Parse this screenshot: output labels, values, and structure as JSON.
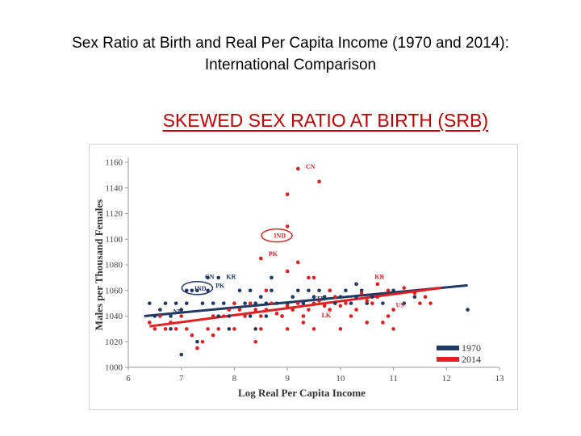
{
  "slide": {
    "title_line1": "Sex Ratio at Birth and Real Per Capita Income (1970 and 2014):",
    "title_line2": "International Comparison",
    "subtitle": "SKEWED SEX RATIO AT BIRTH (SRB)"
  },
  "colors": {
    "series_1970": "#1f3864",
    "series_2014": "#e02020"
  },
  "chart_data": {
    "type": "scatter",
    "xlabel": "Log Real Per Capita Income",
    "ylabel": "Males per Thousand Females",
    "xlim": [
      6,
      13
    ],
    "ylim": [
      1000,
      1160
    ],
    "xticks": [
      6,
      7,
      8,
      9,
      10,
      11,
      12,
      13
    ],
    "yticks": [
      1000,
      1020,
      1040,
      1060,
      1080,
      1100,
      1120,
      1140,
      1160
    ],
    "grid": false,
    "legend_position": "bottom-right",
    "series": [
      {
        "name": "1970",
        "color": "#1f3864",
        "trend": [
          [
            6.3,
            1040
          ],
          [
            12.4,
            1064
          ]
        ],
        "points": [
          [
            6.4,
            1050
          ],
          [
            6.5,
            1040
          ],
          [
            6.6,
            1045
          ],
          [
            6.7,
            1050
          ],
          [
            6.8,
            1040
          ],
          [
            6.9,
            1050
          ],
          [
            7.0,
            1045
          ],
          [
            7.1,
            1050
          ],
          [
            7.1,
            1060
          ],
          [
            7.2,
            1060
          ],
          [
            7.3,
            1060
          ],
          [
            7.4,
            1050
          ],
          [
            7.5,
            1060
          ],
          [
            7.6,
            1050
          ],
          [
            7.7,
            1070
          ],
          [
            7.8,
            1050
          ],
          [
            7.9,
            1040
          ],
          [
            8.0,
            1050
          ],
          [
            8.1,
            1060
          ],
          [
            8.2,
            1050
          ],
          [
            8.3,
            1060
          ],
          [
            8.4,
            1050
          ],
          [
            8.5,
            1055
          ],
          [
            8.6,
            1050
          ],
          [
            8.7,
            1060
          ],
          [
            8.8,
            1050
          ],
          [
            8.9,
            1040
          ],
          [
            9.0,
            1050
          ],
          [
            9.1,
            1055
          ],
          [
            9.2,
            1060
          ],
          [
            9.3,
            1050
          ],
          [
            9.4,
            1060
          ],
          [
            9.5,
            1055
          ],
          [
            9.6,
            1060
          ],
          [
            9.7,
            1055
          ],
          [
            9.8,
            1060
          ],
          [
            9.9,
            1050
          ],
          [
            10.0,
            1055
          ],
          [
            10.1,
            1060
          ],
          [
            10.2,
            1050
          ],
          [
            10.3,
            1055
          ],
          [
            10.4,
            1060
          ],
          [
            10.5,
            1050
          ],
          [
            10.6,
            1055
          ],
          [
            10.8,
            1050
          ],
          [
            11.0,
            1060
          ],
          [
            11.2,
            1050
          ],
          [
            11.4,
            1055
          ],
          [
            7.5,
            1070
          ],
          [
            7.0,
            1010
          ],
          [
            7.7,
            1040
          ],
          [
            8.6,
            1040
          ],
          [
            8.3,
            1040
          ],
          [
            12.4,
            1045
          ],
          [
            6.8,
            1030
          ],
          [
            7.3,
            1020
          ],
          [
            7.9,
            1030
          ],
          [
            8.4,
            1030
          ],
          [
            8.7,
            1070
          ],
          [
            10.3,
            1065
          ]
        ]
      },
      {
        "name": "2014",
        "color": "#e02020",
        "trend": [
          [
            6.4,
            1032
          ],
          [
            11.9,
            1062
          ]
        ],
        "points": [
          [
            9.2,
            1155
          ],
          [
            9.6,
            1145
          ],
          [
            9.0,
            1135
          ],
          [
            9.0,
            1110
          ],
          [
            8.5,
            1085
          ],
          [
            9.2,
            1082
          ],
          [
            9.0,
            1075
          ],
          [
            9.4,
            1070
          ],
          [
            9.5,
            1070
          ],
          [
            10.7,
            1065
          ],
          [
            10.9,
            1060
          ],
          [
            11.2,
            1062
          ],
          [
            11.4,
            1058
          ],
          [
            11.6,
            1055
          ],
          [
            11.7,
            1050
          ],
          [
            11.0,
            1045
          ],
          [
            10.9,
            1040
          ],
          [
            10.6,
            1050
          ],
          [
            10.5,
            1052
          ],
          [
            10.4,
            1058
          ],
          [
            10.3,
            1045
          ],
          [
            10.2,
            1040
          ],
          [
            10.1,
            1050
          ],
          [
            10.0,
            1048
          ],
          [
            9.9,
            1055
          ],
          [
            9.8,
            1045
          ],
          [
            9.7,
            1048
          ],
          [
            9.6,
            1052
          ],
          [
            9.5,
            1050
          ],
          [
            9.4,
            1045
          ],
          [
            9.3,
            1040
          ],
          [
            9.2,
            1050
          ],
          [
            9.1,
            1045
          ],
          [
            9.0,
            1048
          ],
          [
            8.9,
            1040
          ],
          [
            8.8,
            1042
          ],
          [
            8.7,
            1050
          ],
          [
            8.6,
            1045
          ],
          [
            8.5,
            1040
          ],
          [
            8.4,
            1045
          ],
          [
            8.3,
            1050
          ],
          [
            8.2,
            1040
          ],
          [
            8.1,
            1045
          ],
          [
            8.0,
            1050
          ],
          [
            7.9,
            1045
          ],
          [
            7.8,
            1040
          ],
          [
            7.7,
            1030
          ],
          [
            7.6,
            1040
          ],
          [
            7.5,
            1030
          ],
          [
            7.4,
            1020
          ],
          [
            7.3,
            1015
          ],
          [
            7.2,
            1025
          ],
          [
            7.1,
            1030
          ],
          [
            7.0,
            1040
          ],
          [
            6.9,
            1030
          ],
          [
            6.8,
            1035
          ],
          [
            6.7,
            1030
          ],
          [
            6.6,
            1040
          ],
          [
            6.5,
            1030
          ],
          [
            6.4,
            1035
          ],
          [
            8.0,
            1030
          ],
          [
            8.5,
            1030
          ],
          [
            9.0,
            1030
          ],
          [
            9.5,
            1030
          ],
          [
            10.0,
            1030
          ],
          [
            10.5,
            1035
          ],
          [
            11.0,
            1030
          ],
          [
            8.4,
            1020
          ],
          [
            9.3,
            1035
          ],
          [
            10.8,
            1035
          ],
          [
            7.6,
            1025
          ],
          [
            11.5,
            1050
          ],
          [
            10.7,
            1055
          ],
          [
            8.6,
            1060
          ],
          [
            9.8,
            1060
          ]
        ]
      }
    ],
    "annotations": [
      {
        "text": "CN",
        "x": 9.3,
        "y": 1155,
        "color": "#e02020"
      },
      {
        "text": "IND",
        "x": 8.7,
        "y": 1101,
        "color": "#e02020"
      },
      {
        "text": "PK",
        "x": 8.6,
        "y": 1087,
        "color": "#e02020"
      },
      {
        "text": "KR",
        "x": 10.6,
        "y": 1069,
        "color": "#e02020"
      },
      {
        "text": "CN",
        "x": 7.4,
        "y": 1069,
        "color": "#1f3864"
      },
      {
        "text": "KR",
        "x": 7.8,
        "y": 1069,
        "color": "#1f3864"
      },
      {
        "text": "PK",
        "x": 7.6,
        "y": 1062,
        "color": "#1f3864"
      },
      {
        "text": "IND",
        "x": 7.2,
        "y": 1060,
        "color": "#1f3864"
      },
      {
        "text": "NP",
        "x": 6.8,
        "y": 1042,
        "color": "#1f3864"
      },
      {
        "text": "TR",
        "x": 9.5,
        "y": 1052,
        "color": "#1f3864"
      },
      {
        "text": "LK",
        "x": 9.6,
        "y": 1039,
        "color": "#e02020"
      },
      {
        "text": "US",
        "x": 11.0,
        "y": 1047,
        "color": "#e02020"
      }
    ]
  }
}
